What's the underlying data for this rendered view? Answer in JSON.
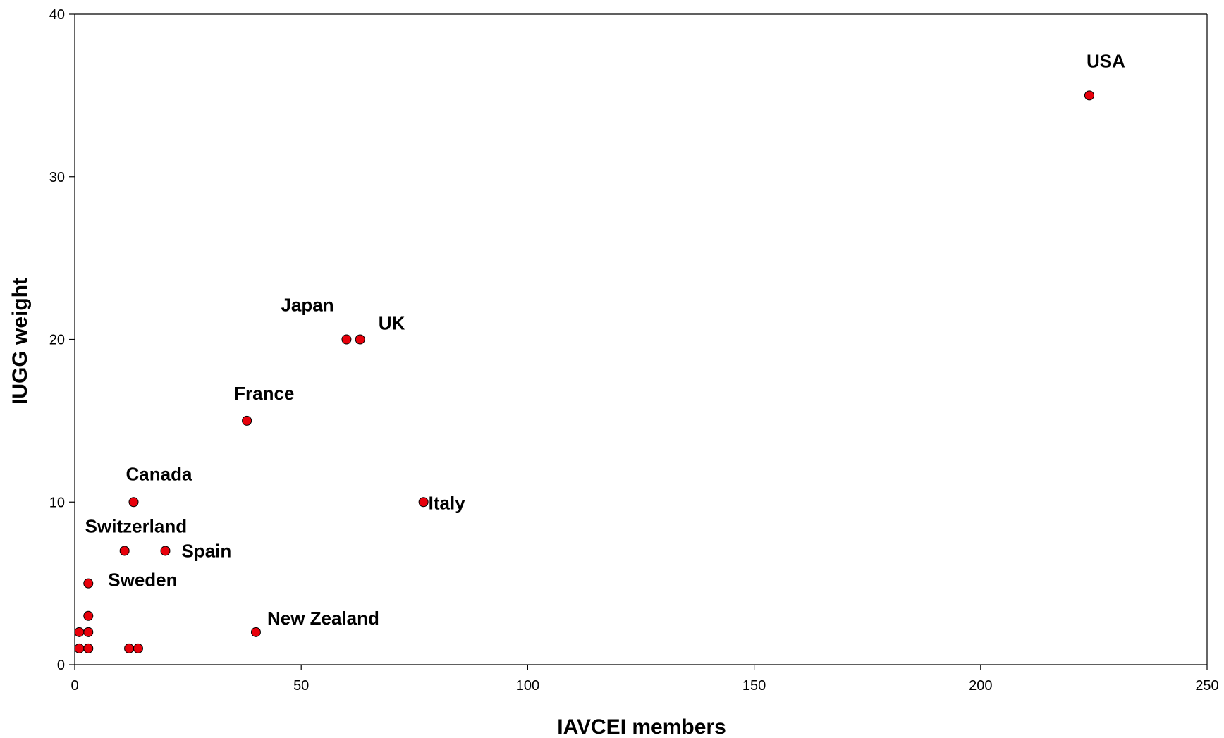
{
  "chart_data": {
    "type": "scatter",
    "title": "",
    "xlabel": "IAVCEI members",
    "ylabel": "IUGG weight",
    "xlim": [
      0,
      250
    ],
    "ylim": [
      0,
      40
    ],
    "xticks": [
      0,
      50,
      100,
      150,
      200,
      250
    ],
    "yticks": [
      0,
      10,
      20,
      30,
      40
    ],
    "grid": false,
    "legend": "none",
    "marker_color": "#e8000b",
    "marker_edge_color": "#000000",
    "points": [
      {
        "x": 224,
        "y": 35,
        "label": "USA"
      },
      {
        "x": 60,
        "y": 20,
        "label": "Japan"
      },
      {
        "x": 63,
        "y": 20,
        "label": "UK"
      },
      {
        "x": 38,
        "y": 15,
        "label": "France"
      },
      {
        "x": 13,
        "y": 10,
        "label": "Canada"
      },
      {
        "x": 77,
        "y": 10,
        "label": "Italy"
      },
      {
        "x": 11,
        "y": 7,
        "label": "Switzerland"
      },
      {
        "x": 20,
        "y": 7,
        "label": "Spain"
      },
      {
        "x": 3,
        "y": 5,
        "label": "Sweden"
      },
      {
        "x": 40,
        "y": 2,
        "label": "New Zealand"
      },
      {
        "x": 3,
        "y": 3,
        "label": ""
      },
      {
        "x": 1,
        "y": 2,
        "label": ""
      },
      {
        "x": 3,
        "y": 2,
        "label": ""
      },
      {
        "x": 1,
        "y": 1,
        "label": ""
      },
      {
        "x": 3,
        "y": 1,
        "label": ""
      },
      {
        "x": 12,
        "y": 1,
        "label": ""
      },
      {
        "x": 14,
        "y": 1,
        "label": ""
      }
    ]
  }
}
